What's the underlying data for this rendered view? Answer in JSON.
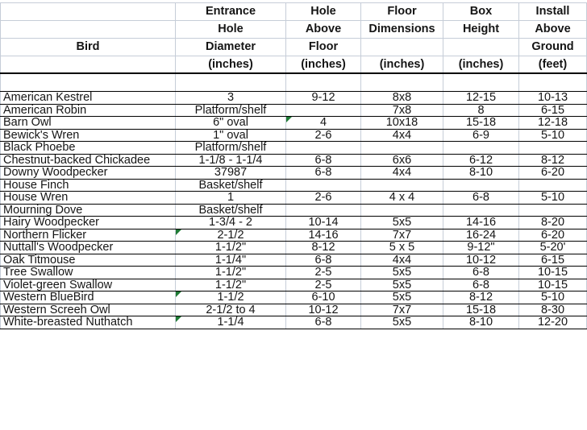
{
  "colors": {
    "grid_line": "#c6cdd8",
    "row_border": "#000000",
    "text": "#151515",
    "error_marker_green": "#1e7a34",
    "background": "#ffffff"
  },
  "table": {
    "column_keys": [
      "bird",
      "entrance",
      "hole_above",
      "floor",
      "box_height",
      "install"
    ],
    "headers": [
      {
        "lines": [
          "",
          "",
          "Bird",
          ""
        ]
      },
      {
        "lines": [
          "Entrance",
          "Hole",
          "Diameter",
          "(inches)"
        ]
      },
      {
        "lines": [
          "Hole",
          "Above",
          "Floor",
          "(inches)"
        ]
      },
      {
        "lines": [
          "Floor",
          "Dimensions",
          "",
          "(inches)"
        ]
      },
      {
        "lines": [
          "Box",
          "Height",
          "",
          "(inches)"
        ]
      },
      {
        "lines": [
          "Install",
          "Above",
          "Ground",
          "(feet)"
        ]
      }
    ],
    "rows": [
      {
        "bird": "American Kestrel",
        "entrance": "3",
        "hole_above": "9-12",
        "floor": "8x8",
        "box_height": "12-15",
        "install": "10-13",
        "marker_col": ""
      },
      {
        "bird": "American Robin",
        "entrance": "Platform/shelf",
        "hole_above": "",
        "floor": "7x8",
        "box_height": "8",
        "install": "6-15",
        "marker_col": ""
      },
      {
        "bird": "Barn Owl",
        "entrance": "6\" oval",
        "hole_above": "4",
        "floor": "10x18",
        "box_height": "15-18",
        "install": "12-18",
        "marker_col": "hole_above"
      },
      {
        "bird": "Bewick's Wren",
        "entrance": "1\" oval",
        "hole_above": "2-6",
        "floor": "4x4",
        "box_height": "6-9",
        "install": "5-10",
        "marker_col": ""
      },
      {
        "bird": "Black Phoebe",
        "entrance": "Platform/shelf",
        "hole_above": "",
        "floor": "",
        "box_height": "",
        "install": "",
        "marker_col": ""
      },
      {
        "bird": "Chestnut-backed Chickadee",
        "entrance": "1-1/8 - 1-1/4",
        "hole_above": "6-8",
        "floor": "6x6",
        "box_height": "6-12",
        "install": "8-12",
        "marker_col": ""
      },
      {
        "bird": "Downy Woodpecker",
        "entrance": "37987",
        "hole_above": "6-8",
        "floor": "4x4",
        "box_height": "8-10",
        "install": "6-20",
        "marker_col": ""
      },
      {
        "bird": "House Finch",
        "entrance": "Basket/shelf",
        "hole_above": "",
        "floor": "",
        "box_height": "",
        "install": "",
        "marker_col": ""
      },
      {
        "bird": "House Wren",
        "entrance": "1",
        "hole_above": "2-6",
        "floor": "4 x 4",
        "box_height": "6-8",
        "install": "5-10",
        "marker_col": ""
      },
      {
        "bird": "Mourning Dove",
        "entrance": "Basket/shelf",
        "hole_above": "",
        "floor": "",
        "box_height": "",
        "install": "",
        "marker_col": ""
      },
      {
        "bird": "Hairy Woodpecker",
        "entrance": "1-3/4 - 2",
        "hole_above": "10-14",
        "floor": "5x5",
        "box_height": "14-16",
        "install": "8-20",
        "marker_col": ""
      },
      {
        "bird": "Northern Flicker",
        "entrance": "2-1/2",
        "hole_above": "14-16",
        "floor": "7x7",
        "box_height": "16-24",
        "install": "6-20",
        "marker_col": "entrance"
      },
      {
        "bird": "Nuttall's Woodpecker",
        "entrance": "1-1/2\"",
        "hole_above": "8-12",
        "floor": "5 x 5",
        "box_height": "9-12\"",
        "install": "5-20'",
        "marker_col": ""
      },
      {
        "bird": "Oak Titmouse",
        "entrance": "1-1/4\"",
        "hole_above": "6-8",
        "floor": "4x4",
        "box_height": "10-12",
        "install": "6-15",
        "marker_col": ""
      },
      {
        "bird": "Tree Swallow",
        "entrance": "1-1/2\"",
        "hole_above": "2-5",
        "floor": "5x5",
        "box_height": "6-8",
        "install": "10-15",
        "marker_col": ""
      },
      {
        "bird": "Violet-green Swallow",
        "entrance": "1-1/2\"",
        "hole_above": "2-5",
        "floor": "5x5",
        "box_height": "6-8",
        "install": "10-15",
        "marker_col": ""
      },
      {
        "bird": "Western BlueBird",
        "entrance": "1-1/2",
        "hole_above": "6-10",
        "floor": "5x5",
        "box_height": "8-12",
        "install": "5-10",
        "marker_col": "entrance"
      },
      {
        "bird": "Western Screeh Owl",
        "entrance": "2-1/2 to 4",
        "hole_above": "10-12",
        "floor": "7x7",
        "box_height": "15-18",
        "install": "8-30",
        "marker_col": "entrance_none"
      },
      {
        "bird": "White-breasted Nuthatch",
        "entrance": "1-1/4",
        "hole_above": "6-8",
        "floor": "5x5",
        "box_height": "8-10",
        "install": "12-20",
        "marker_col": "entrance"
      }
    ]
  }
}
